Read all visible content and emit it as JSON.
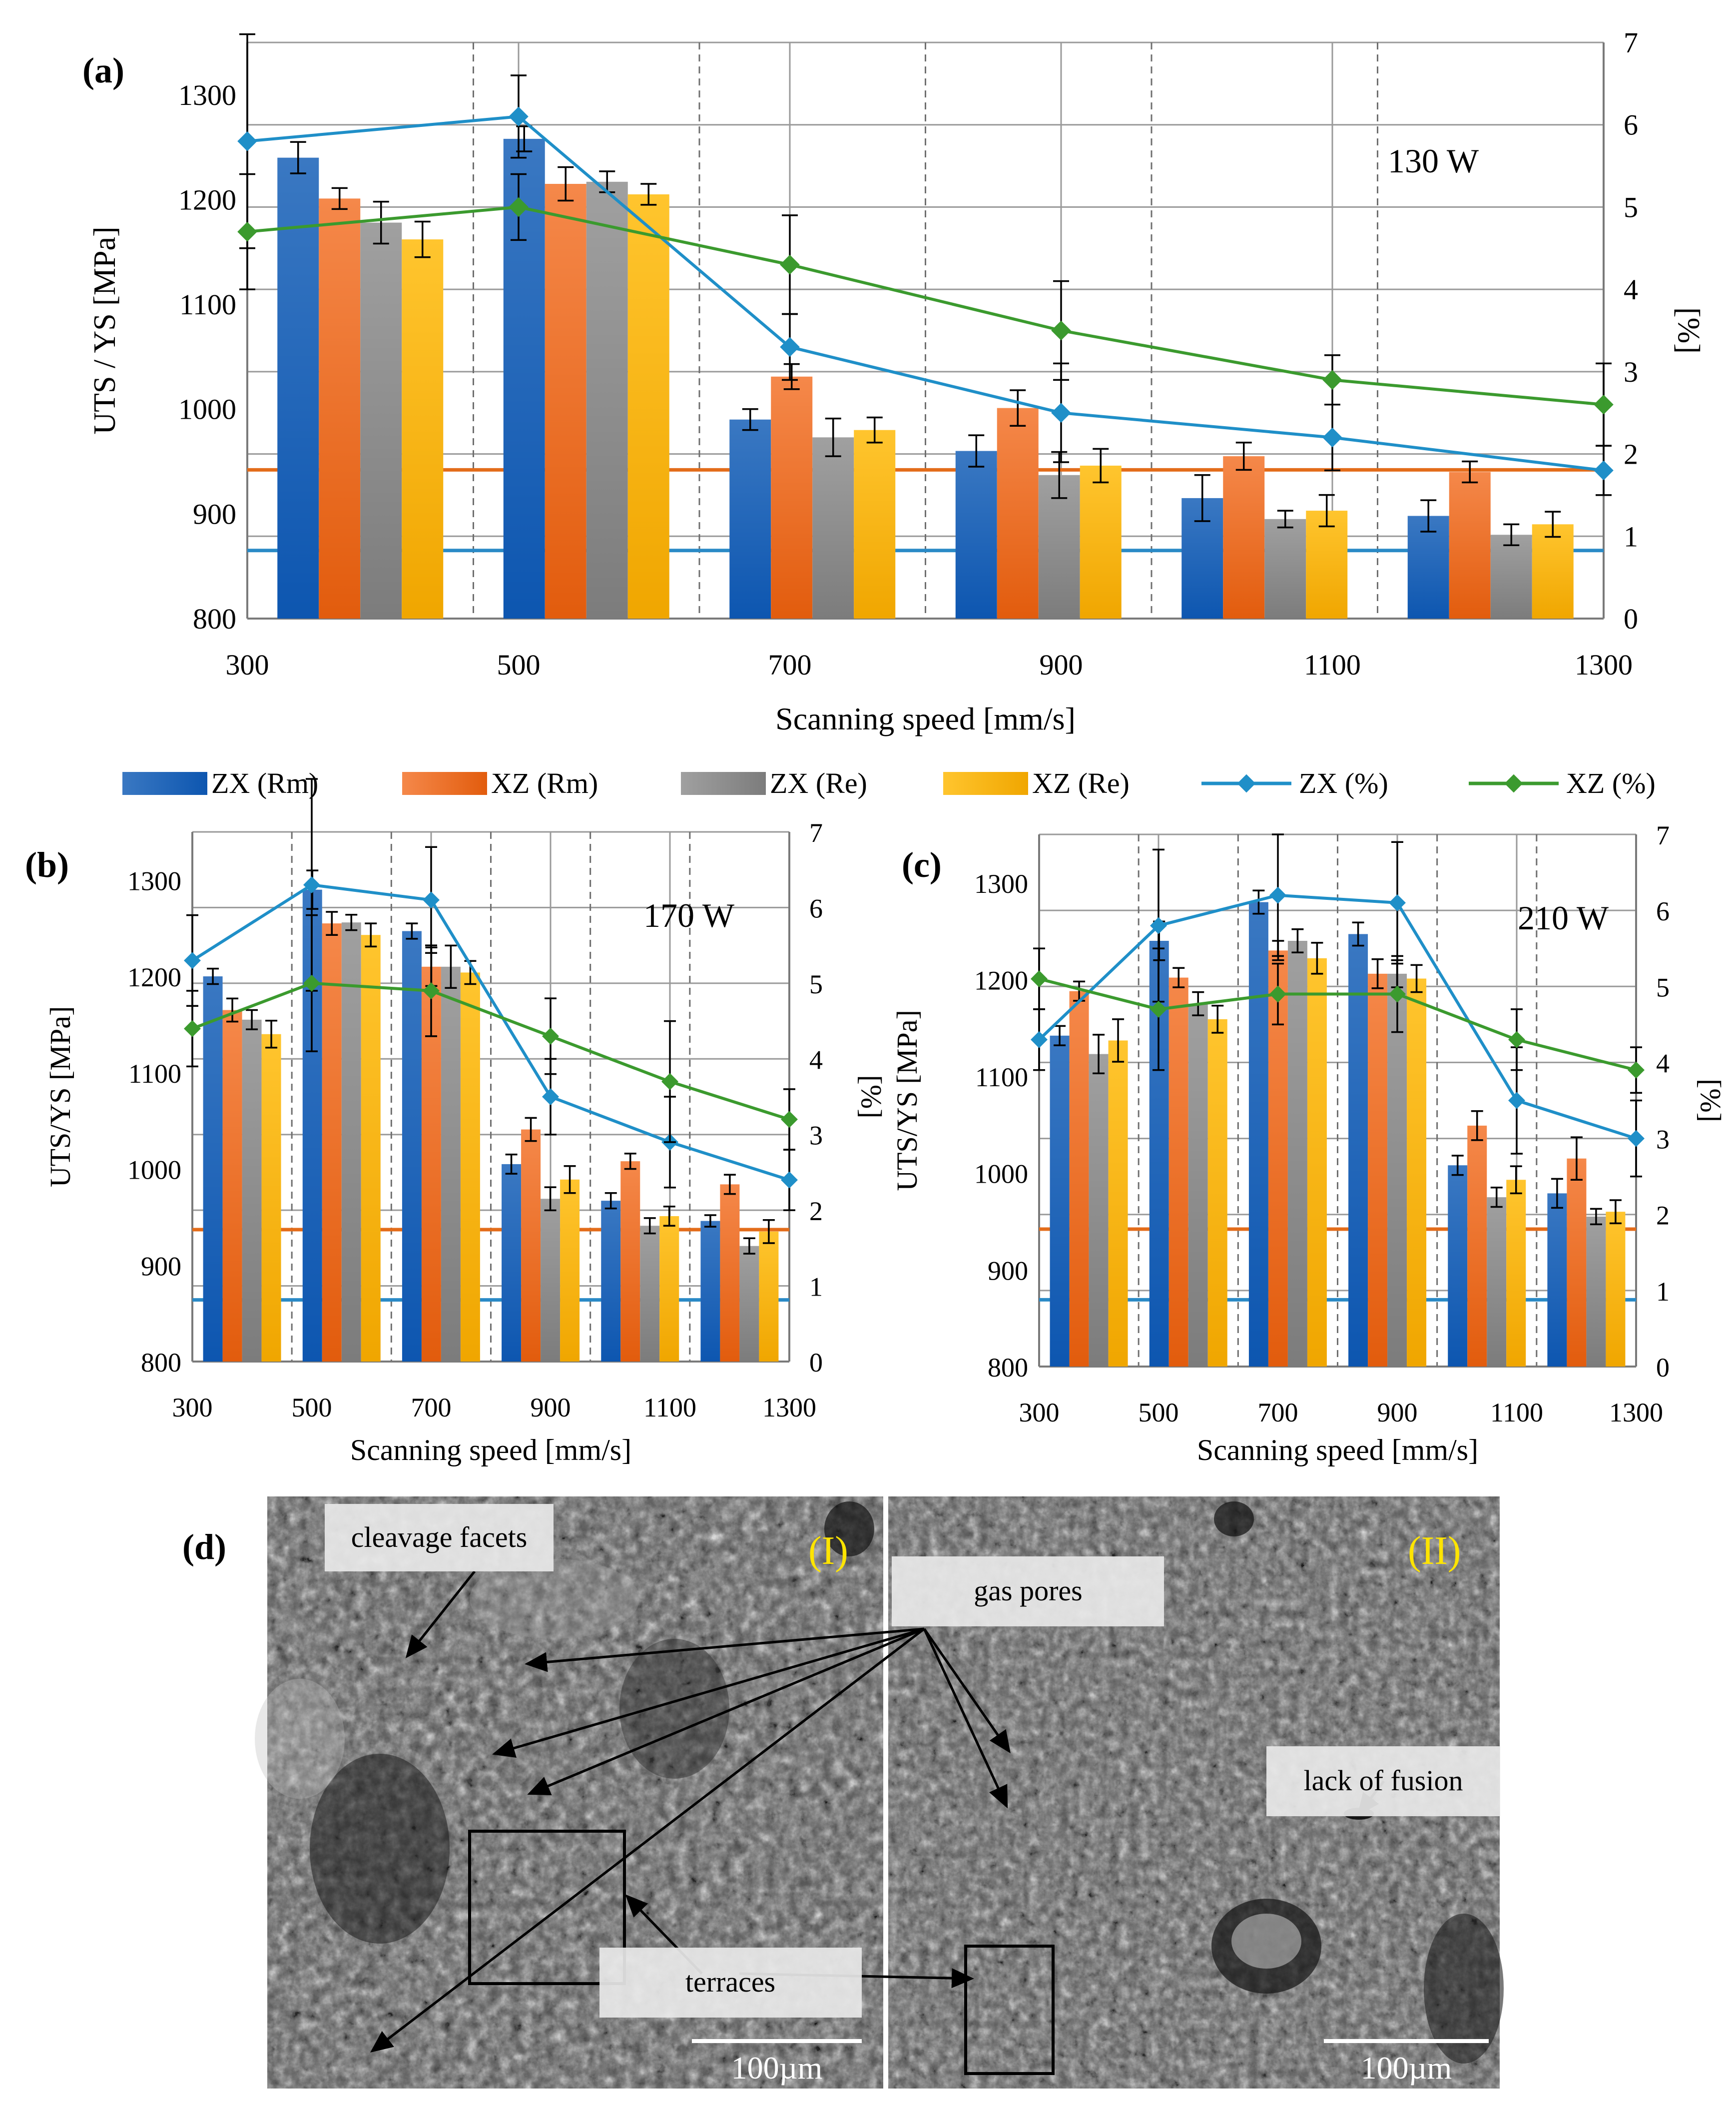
{
  "figure": {
    "legend": [
      {
        "name": "ZX (Rm)",
        "kind": "bar",
        "color": "#1f5fad"
      },
      {
        "name": "XZ (Rm)",
        "kind": "bar",
        "color": "#ed6c1f"
      },
      {
        "name": "ZX (Re)",
        "kind": "bar",
        "color": "#8f8f8f"
      },
      {
        "name": "XZ (Re)",
        "kind": "bar",
        "color": "#fbb400"
      },
      {
        "name": "ZX (%)",
        "kind": "line",
        "color": "#1f8fc8"
      },
      {
        "name": "XZ (%)",
        "kind": "line",
        "color": "#3b9a2e"
      }
    ],
    "colors": {
      "zx_rm": "#1f5fad",
      "xz_rm": "#ed6c1f",
      "zx_re": "#8f8f8f",
      "xz_re": "#fbb400",
      "zx_pct": "#1f8fc8",
      "xz_pct": "#3b9a2e",
      "ref_orange": "#e36c1a",
      "ref_blue": "#2a8ac6"
    }
  },
  "chart_data": [
    {
      "type": "bar",
      "panel_label": "(a)",
      "power_label": "130 W",
      "xlabel": "Scanning speed [mm/s]",
      "ylabel": "UTS / YS [MPa]",
      "y2label": "[%]",
      "categories": [
        "300",
        "500",
        "700",
        "900",
        "1100",
        "1300"
      ],
      "ylim": [
        800,
        1350
      ],
      "yticks": [
        800,
        900,
        1000,
        1100,
        1200,
        1300
      ],
      "y2lim": [
        0,
        7
      ],
      "y2ticks": [
        0,
        1,
        2,
        3,
        4,
        5,
        6,
        7
      ],
      "bars": [
        {
          "name": "ZX (Rm)",
          "values": [
            1240,
            1258,
            990,
            960,
            915,
            898
          ],
          "err": [
            15,
            12,
            10,
            15,
            22,
            15
          ]
        },
        {
          "name": "XZ (Rm)",
          "values": [
            1201,
            1215,
            1031,
            1001,
            955,
            940
          ],
          "err": [
            10,
            16,
            12,
            17,
            13,
            10
          ]
        },
        {
          "name": "ZX (Re)",
          "values": [
            1178,
            1217,
            973,
            937,
            895,
            880
          ],
          "err": [
            20,
            10,
            18,
            22,
            8,
            10
          ]
        },
        {
          "name": "XZ (Re)",
          "values": [
            1162,
            1205,
            980,
            946,
            903,
            890
          ],
          "err": [
            17,
            10,
            12,
            16,
            15,
            12
          ]
        }
      ],
      "lines": [
        {
          "name": "ZX (%)",
          "values": [
            5.8,
            6.1,
            3.3,
            2.5,
            2.2,
            1.8
          ],
          "err": [
            1.3,
            0.5,
            0.4,
            0.6,
            0.4,
            0.3
          ]
        },
        {
          "name": "XZ (%)",
          "values": [
            4.7,
            5.0,
            4.3,
            3.5,
            2.9,
            2.6
          ],
          "err": [
            0.7,
            0.4,
            0.6,
            0.6,
            0.3,
            0.5
          ]
        }
      ],
      "ref_lines": [
        {
          "axis": "left",
          "value": 942,
          "color": "orange"
        },
        {
          "axis": "left",
          "value": 865,
          "color": "blue"
        }
      ]
    },
    {
      "type": "bar",
      "panel_label": "(b)",
      "power_label": "170 W",
      "xlabel": "Scanning speed [mm/s]",
      "ylabel": "UTS/YS [MPa]",
      "y2label": "[%]",
      "categories": [
        "300",
        "500",
        "700",
        "900",
        "1100",
        "1300"
      ],
      "ylim": [
        800,
        1350
      ],
      "yticks": [
        800,
        900,
        1000,
        1100,
        1200,
        1300
      ],
      "y2lim": [
        0,
        7
      ],
      "y2ticks": [
        0,
        1,
        2,
        3,
        4,
        5,
        6,
        7
      ],
      "bars": [
        {
          "name": "ZX (Rm)",
          "values": [
            1200,
            1290,
            1247,
            1005,
            967,
            946
          ],
          "err": [
            8,
            20,
            8,
            10,
            8,
            6
          ]
        },
        {
          "name": "XZ (Rm)",
          "values": [
            1165,
            1255,
            1210,
            1041,
            1008,
            984
          ],
          "err": [
            12,
            12,
            20,
            12,
            8,
            10
          ]
        },
        {
          "name": "ZX (Re)",
          "values": [
            1155,
            1256,
            1210,
            969,
            941,
            920
          ],
          "err": [
            10,
            8,
            22,
            12,
            8,
            8
          ]
        },
        {
          "name": "XZ (Re)",
          "values": [
            1140,
            1243,
            1204,
            989,
            951,
            935
          ],
          "err": [
            14,
            12,
            12,
            14,
            10,
            12
          ]
        }
      ],
      "lines": [
        {
          "name": "ZX (%)",
          "values": [
            5.3,
            6.3,
            6.1,
            3.5,
            2.9,
            2.4
          ],
          "err": [
            0.6,
            1.4,
            0.7,
            0.5,
            0.6,
            0.4
          ]
        },
        {
          "name": "XZ (%)",
          "values": [
            4.4,
            5.0,
            4.9,
            4.3,
            3.7,
            3.2
          ],
          "err": [
            0.5,
            0.9,
            0.6,
            0.5,
            0.8,
            0.4
          ]
        }
      ],
      "ref_lines": [
        {
          "axis": "left",
          "value": 937,
          "color": "orange"
        },
        {
          "axis": "left",
          "value": 864,
          "color": "blue"
        }
      ]
    },
    {
      "type": "bar",
      "panel_label": "(c)",
      "power_label": "210 W",
      "xlabel": "Scanning speed [mm/s]",
      "ylabel": "UTS/YS [MPa]",
      "y2label": "[%]",
      "categories": [
        "300",
        "500",
        "700",
        "900",
        "1100",
        "1300"
      ],
      "ylim": [
        800,
        1350
      ],
      "yticks": [
        800,
        900,
        1000,
        1100,
        1200,
        1300
      ],
      "y2lim": [
        0,
        7
      ],
      "y2ticks": [
        0,
        1,
        2,
        3,
        4,
        5,
        6,
        7
      ],
      "bars": [
        {
          "name": "ZX (Rm)",
          "values": [
            1142,
            1240,
            1280,
            1247,
            1008,
            979
          ],
          "err": [
            10,
            20,
            12,
            12,
            10,
            15
          ]
        },
        {
          "name": "XZ (Rm)",
          "values": [
            1188,
            1202,
            1230,
            1206,
            1049,
            1015
          ],
          "err": [
            10,
            10,
            10,
            15,
            15,
            22
          ]
        },
        {
          "name": "ZX (Re)",
          "values": [
            1123,
            1175,
            1240,
            1206,
            975,
            955
          ],
          "err": [
            20,
            12,
            12,
            14,
            10,
            8
          ]
        },
        {
          "name": "XZ (Re)",
          "values": [
            1137,
            1159,
            1222,
            1201,
            993,
            960
          ],
          "err": [
            22,
            14,
            16,
            14,
            14,
            12
          ]
        }
      ],
      "lines": [
        {
          "name": "ZX (%)",
          "values": [
            4.3,
            5.8,
            6.2,
            6.1,
            3.5,
            3.0
          ],
          "err": [
            0.4,
            1.0,
            0.8,
            0.8,
            0.7,
            0.5
          ]
        },
        {
          "name": "XZ (%)",
          "values": [
            5.1,
            4.7,
            4.9,
            4.9,
            4.3,
            3.9
          ],
          "err": [
            0.4,
            0.8,
            0.4,
            0.5,
            0.4,
            0.3
          ]
        }
      ],
      "ref_lines": [
        {
          "axis": "left",
          "value": 942,
          "color": "orange"
        },
        {
          "axis": "left",
          "value": 869,
          "color": "blue"
        }
      ]
    }
  ],
  "sem": {
    "panel_label": "(d)",
    "left_tag": "(I)",
    "right_tag": "(II)",
    "labels": {
      "cleavage": "cleavage facets",
      "pores": "gas pores",
      "fusion": "lack of fusion",
      "terraces": "terraces"
    },
    "scale_left": "100µm",
    "scale_right": "100µm"
  }
}
